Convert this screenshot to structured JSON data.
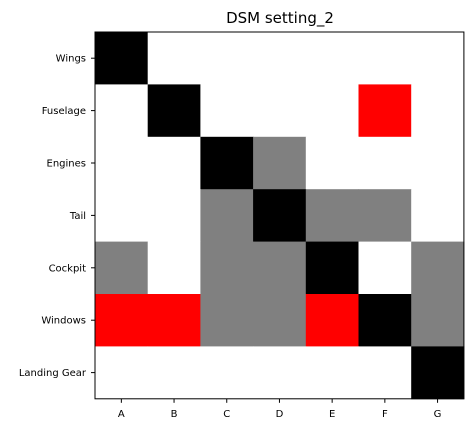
{
  "chart_data": {
    "type": "heatmap",
    "title": "DSM setting_2",
    "xlabel": "",
    "ylabel": "",
    "grid": false,
    "legend": "none",
    "x_categories": [
      "A",
      "B",
      "C",
      "D",
      "E",
      "F",
      "G"
    ],
    "y_categories": [
      "Wings",
      "Fuselage",
      "Engines",
      "Tail",
      "Cockpit",
      "Windows",
      "Landing Gear"
    ],
    "cell_states": [
      "empty",
      "diagonal",
      "dependency",
      "highlighted"
    ],
    "state_colors": {
      "empty": "#ffffff",
      "diagonal": "#000000",
      "dependency": "#808080",
      "highlighted": "#ff0000"
    },
    "matrix": [
      [
        "diagonal",
        "empty",
        "empty",
        "empty",
        "empty",
        "empty",
        "empty"
      ],
      [
        "empty",
        "diagonal",
        "empty",
        "empty",
        "empty",
        "highlighted",
        "empty"
      ],
      [
        "empty",
        "empty",
        "diagonal",
        "dependency",
        "empty",
        "empty",
        "empty"
      ],
      [
        "empty",
        "empty",
        "dependency",
        "diagonal",
        "dependency",
        "dependency",
        "empty"
      ],
      [
        "dependency",
        "empty",
        "dependency",
        "dependency",
        "diagonal",
        "empty",
        "dependency"
      ],
      [
        "highlighted",
        "highlighted",
        "dependency",
        "dependency",
        "highlighted",
        "diagonal",
        "dependency"
      ],
      [
        "empty",
        "empty",
        "empty",
        "empty",
        "empty",
        "empty",
        "diagonal"
      ]
    ]
  }
}
